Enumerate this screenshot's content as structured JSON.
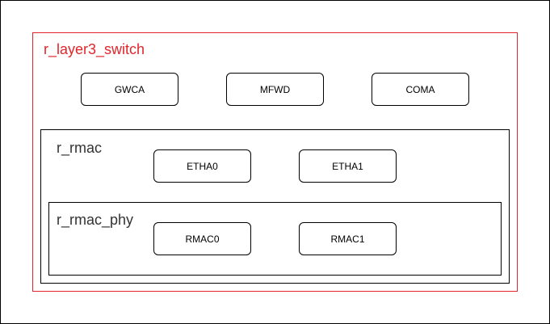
{
  "diagram": {
    "colors": {
      "outer_border": "#e0262c",
      "inner_border": "#000000",
      "label_gray": "#333333"
    },
    "containers": {
      "r_layer3_switch": {
        "label": "r_layer3_switch",
        "blocks": [
          "GWCA",
          "MFWD",
          "COMA"
        ]
      },
      "r_rmac": {
        "label": "r_rmac",
        "blocks": [
          "ETHA0",
          "ETHA1"
        ]
      },
      "r_rmac_phy": {
        "label": "r_rmac_phy",
        "blocks": [
          "RMAC0",
          "RMAC1"
        ]
      }
    }
  }
}
